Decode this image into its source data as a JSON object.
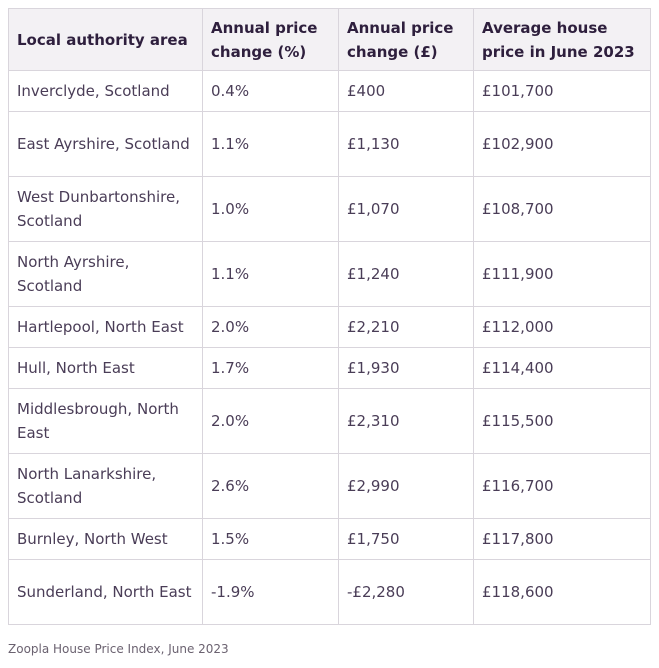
{
  "table": {
    "headers": [
      "Local authority area",
      "Annual price change (%)",
      "Annual price change (£)",
      "Average house price in June 2023"
    ],
    "rows": [
      [
        "Inverclyde, Scotland",
        "0.4%",
        "£400",
        "£101,700"
      ],
      [
        "East Ayrshire, Scotland",
        "1.1%",
        "£1,130",
        "£102,900"
      ],
      [
        "West Dunbartonshire, Scotland",
        "1.0%",
        "£1,070",
        "£108,700"
      ],
      [
        "North Ayrshire, Scotland",
        "1.1%",
        "£1,240",
        "£111,900"
      ],
      [
        "Hartlepool, North East",
        "2.0%",
        "£2,210",
        "£112,000"
      ],
      [
        "Hull, North East",
        "1.7%",
        "£1,930",
        "£114,400"
      ],
      [
        "Middlesbrough, North East",
        "2.0%",
        "£2,310",
        "£115,500"
      ],
      [
        "North Lanarkshire, Scotland",
        "2.6%",
        "£2,990",
        "£116,700"
      ],
      [
        "Burnley, North West",
        "1.5%",
        "£1,750",
        "£117,800"
      ],
      [
        "Sunderland, North East",
        "-1.9%",
        "-£2,280",
        "£118,600"
      ]
    ]
  },
  "caption": "Zoopla House Price Index, June 2023"
}
